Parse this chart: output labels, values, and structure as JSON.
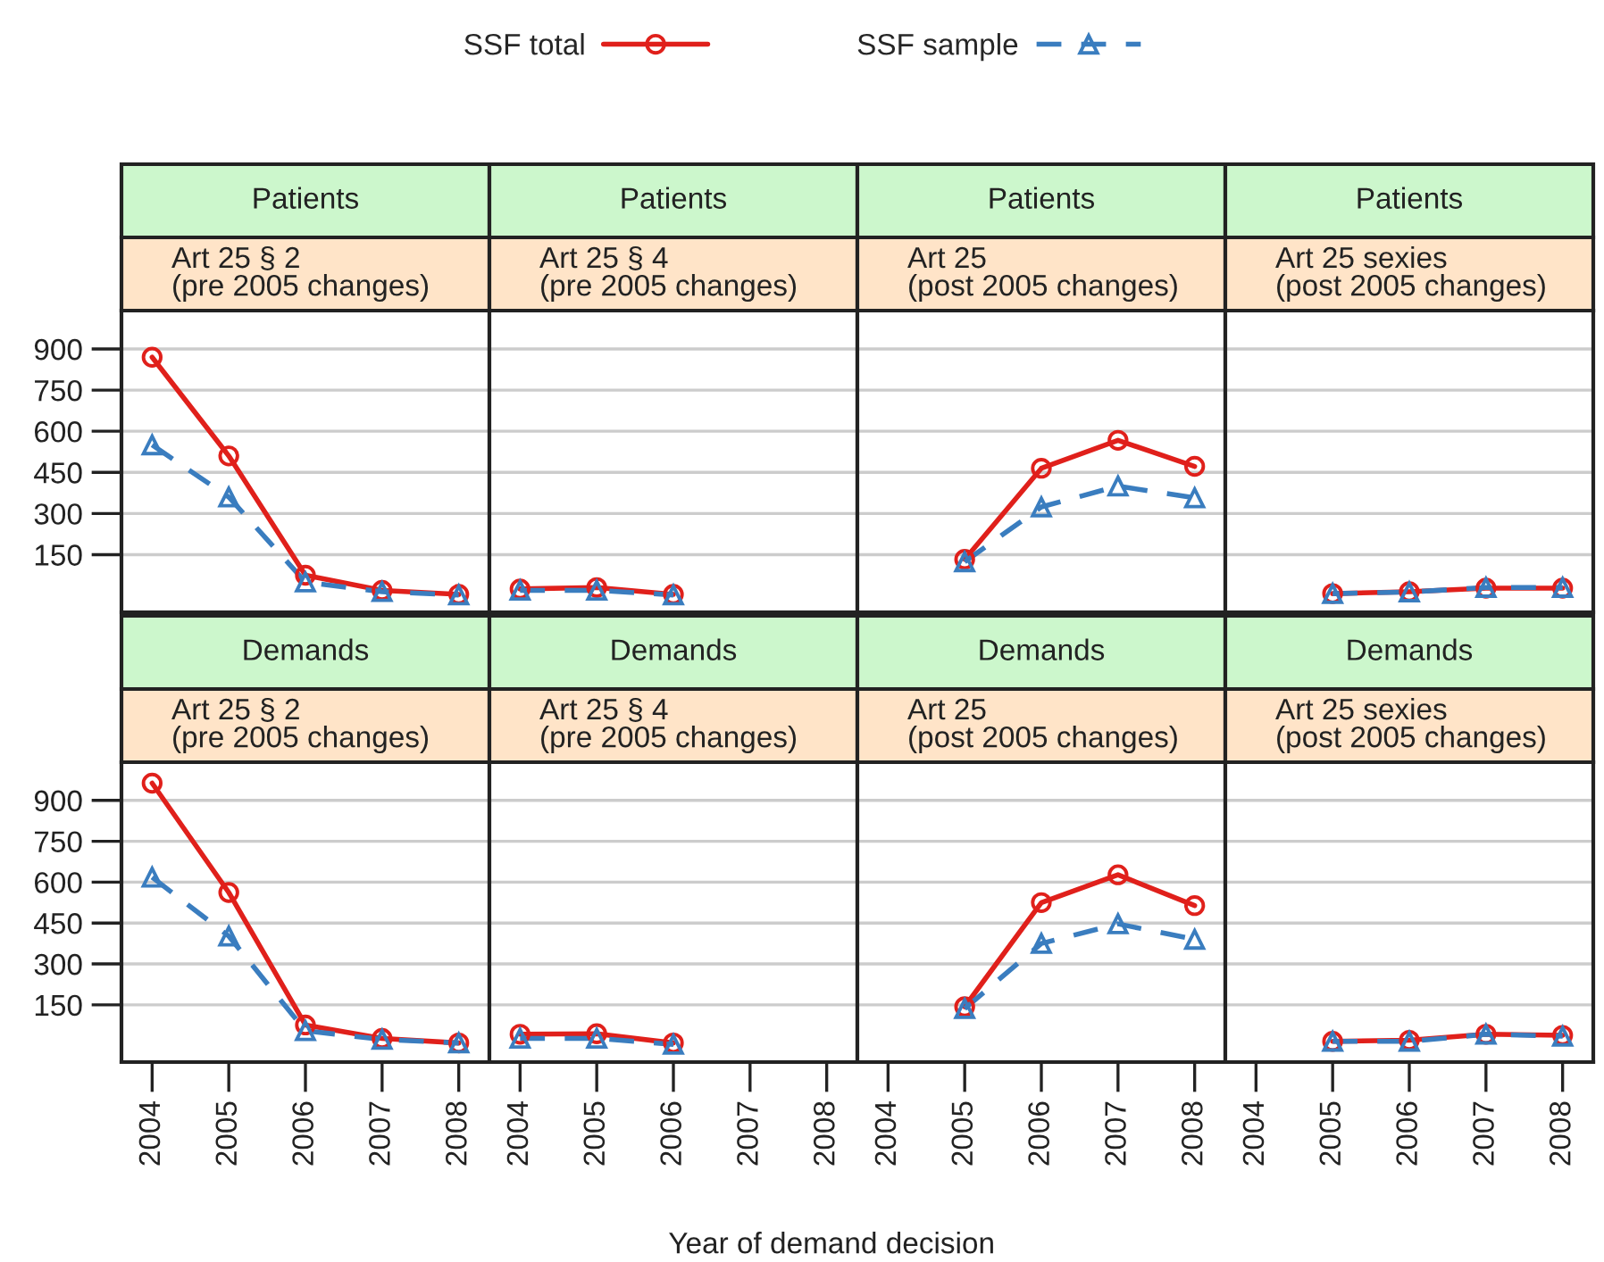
{
  "chart_data": [
    {
      "type": "line",
      "title": "Patients",
      "subtitle": "Art 25 § 2\n(pre 2005 changes)",
      "categories": [
        "2004",
        "2005",
        "2006",
        "2007",
        "2008"
      ],
      "ylim": [
        -60,
        1040
      ],
      "yticks": [
        150,
        300,
        450,
        600,
        750,
        900
      ],
      "grid": "y",
      "tick_labels": "y",
      "legend": "top",
      "series": [
        {
          "name": "SSF total",
          "color": "#e0201b",
          "marker": "circle",
          "line_style": "solid",
          "values": [
            870,
            510,
            75,
            20,
            5
          ]
        },
        {
          "name": "SSF sample",
          "color": "#3a7dbf",
          "marker": "triangle",
          "line_style": "dashed",
          "values": [
            550,
            360,
            50,
            15,
            3
          ]
        }
      ]
    },
    {
      "type": "line",
      "title": "Patients",
      "subtitle": "Art 25 § 4\n(pre 2005 changes)",
      "categories": [
        "2004",
        "2005",
        "2006",
        "2007",
        "2008"
      ],
      "ylim": [
        -60,
        1040
      ],
      "yticks": [
        150,
        300,
        450,
        600,
        750,
        900
      ],
      "grid": "y",
      "tick_labels": false,
      "series": [
        {
          "color": "#e0201b",
          "marker": "circle",
          "line_style": "solid",
          "values": [
            25,
            30,
            5,
            null,
            null
          ]
        },
        {
          "color": "#3a7dbf",
          "marker": "triangle",
          "line_style": "dashed",
          "values": [
            20,
            20,
            3,
            null,
            null
          ]
        }
      ]
    },
    {
      "type": "line",
      "title": "Patients",
      "subtitle": "Art 25\n(post 2005 changes)",
      "categories": [
        "2004",
        "2005",
        "2006",
        "2007",
        "2008"
      ],
      "ylim": [
        -60,
        1040
      ],
      "yticks": [
        150,
        300,
        450,
        600,
        750,
        900
      ],
      "grid": "y",
      "tick_labels": false,
      "series": [
        {
          "color": "#e0201b",
          "marker": "circle",
          "line_style": "solid",
          "values": [
            null,
            133,
            465,
            567,
            472
          ]
        },
        {
          "color": "#3a7dbf",
          "marker": "triangle",
          "line_style": "dashed",
          "values": [
            null,
            124,
            324,
            400,
            357
          ]
        }
      ]
    },
    {
      "type": "line",
      "title": "Patients",
      "subtitle": "Art 25 sexies\n(post 2005 changes)",
      "categories": [
        "2004",
        "2005",
        "2006",
        "2007",
        "2008"
      ],
      "ylim": [
        -60,
        1040
      ],
      "yticks": [
        150,
        300,
        450,
        600,
        750,
        900
      ],
      "grid": "y",
      "tick_labels": false,
      "series": [
        {
          "color": "#e0201b",
          "marker": "circle",
          "line_style": "solid",
          "values": [
            null,
            8,
            15,
            28,
            28
          ]
        },
        {
          "color": "#3a7dbf",
          "marker": "triangle",
          "line_style": "dashed",
          "values": [
            null,
            8,
            14,
            30,
            30
          ]
        }
      ]
    },
    {
      "type": "line",
      "title": "Demands",
      "subtitle": "Art 25 § 2\n(pre 2005 changes)",
      "categories": [
        "2004",
        "2005",
        "2006",
        "2007",
        "2008"
      ],
      "ylim": [
        -60,
        1040
      ],
      "yticks": [
        150,
        300,
        450,
        600,
        750,
        900
      ],
      "grid": "y",
      "series": [
        {
          "color": "#e0201b",
          "marker": "circle",
          "line_style": "solid",
          "values": [
            963,
            562,
            76,
            27,
            10
          ]
        },
        {
          "color": "#3a7dbf",
          "marker": "triangle",
          "line_style": "dashed",
          "values": [
            618,
            402,
            55,
            23,
            10
          ]
        }
      ]
    },
    {
      "type": "line",
      "title": "Demands",
      "subtitle": "Art 25 § 4\n(pre 2005 changes)",
      "xlabel": "Year of demand decision",
      "categories": [
        "2004",
        "2005",
        "2006",
        "2007",
        "2008"
      ],
      "ylim": [
        -60,
        1040
      ],
      "yticks": [
        150,
        300,
        450,
        600,
        750,
        900
      ],
      "grid": "y",
      "tick_labels": "x",
      "series": [
        {
          "color": "#e0201b",
          "marker": "circle",
          "line_style": "solid",
          "values": [
            42,
            44,
            10,
            null,
            null
          ]
        },
        {
          "color": "#3a7dbf",
          "marker": "triangle",
          "line_style": "dashed",
          "values": [
            27,
            27,
            5,
            null,
            null
          ]
        }
      ]
    },
    {
      "type": "line",
      "title": "Demands",
      "subtitle": "Art 25\n(post 2005 changes)",
      "categories": [
        "2004",
        "2005",
        "2006",
        "2007",
        "2008"
      ],
      "ylim": [
        -60,
        1040
      ],
      "yticks": [
        150,
        300,
        450,
        600,
        750,
        900
      ],
      "grid": "y",
      "tick_labels": "x",
      "series": [
        {
          "color": "#e0201b",
          "marker": "circle",
          "line_style": "solid",
          "values": [
            null,
            143,
            525,
            627,
            514
          ]
        },
        {
          "color": "#3a7dbf",
          "marker": "triangle",
          "line_style": "dashed",
          "values": [
            null,
            136,
            375,
            447,
            390
          ]
        }
      ]
    },
    {
      "type": "line",
      "title": "Demands",
      "subtitle": "Art 25 sexies\n(post 2005 changes)",
      "categories": [
        "2004",
        "2005",
        "2006",
        "2007",
        "2008"
      ],
      "ylim": [
        -60,
        1040
      ],
      "yticks": [
        150,
        300,
        450,
        600,
        750,
        900
      ],
      "grid": "y",
      "tick_labels": "x",
      "series": [
        {
          "color": "#e0201b",
          "marker": "circle",
          "line_style": "solid",
          "values": [
            null,
            16,
            20,
            42,
            38
          ]
        },
        {
          "color": "#3a7dbf",
          "marker": "triangle",
          "line_style": "dashed",
          "values": [
            null,
            16,
            16,
            42,
            35
          ]
        }
      ]
    }
  ]
}
